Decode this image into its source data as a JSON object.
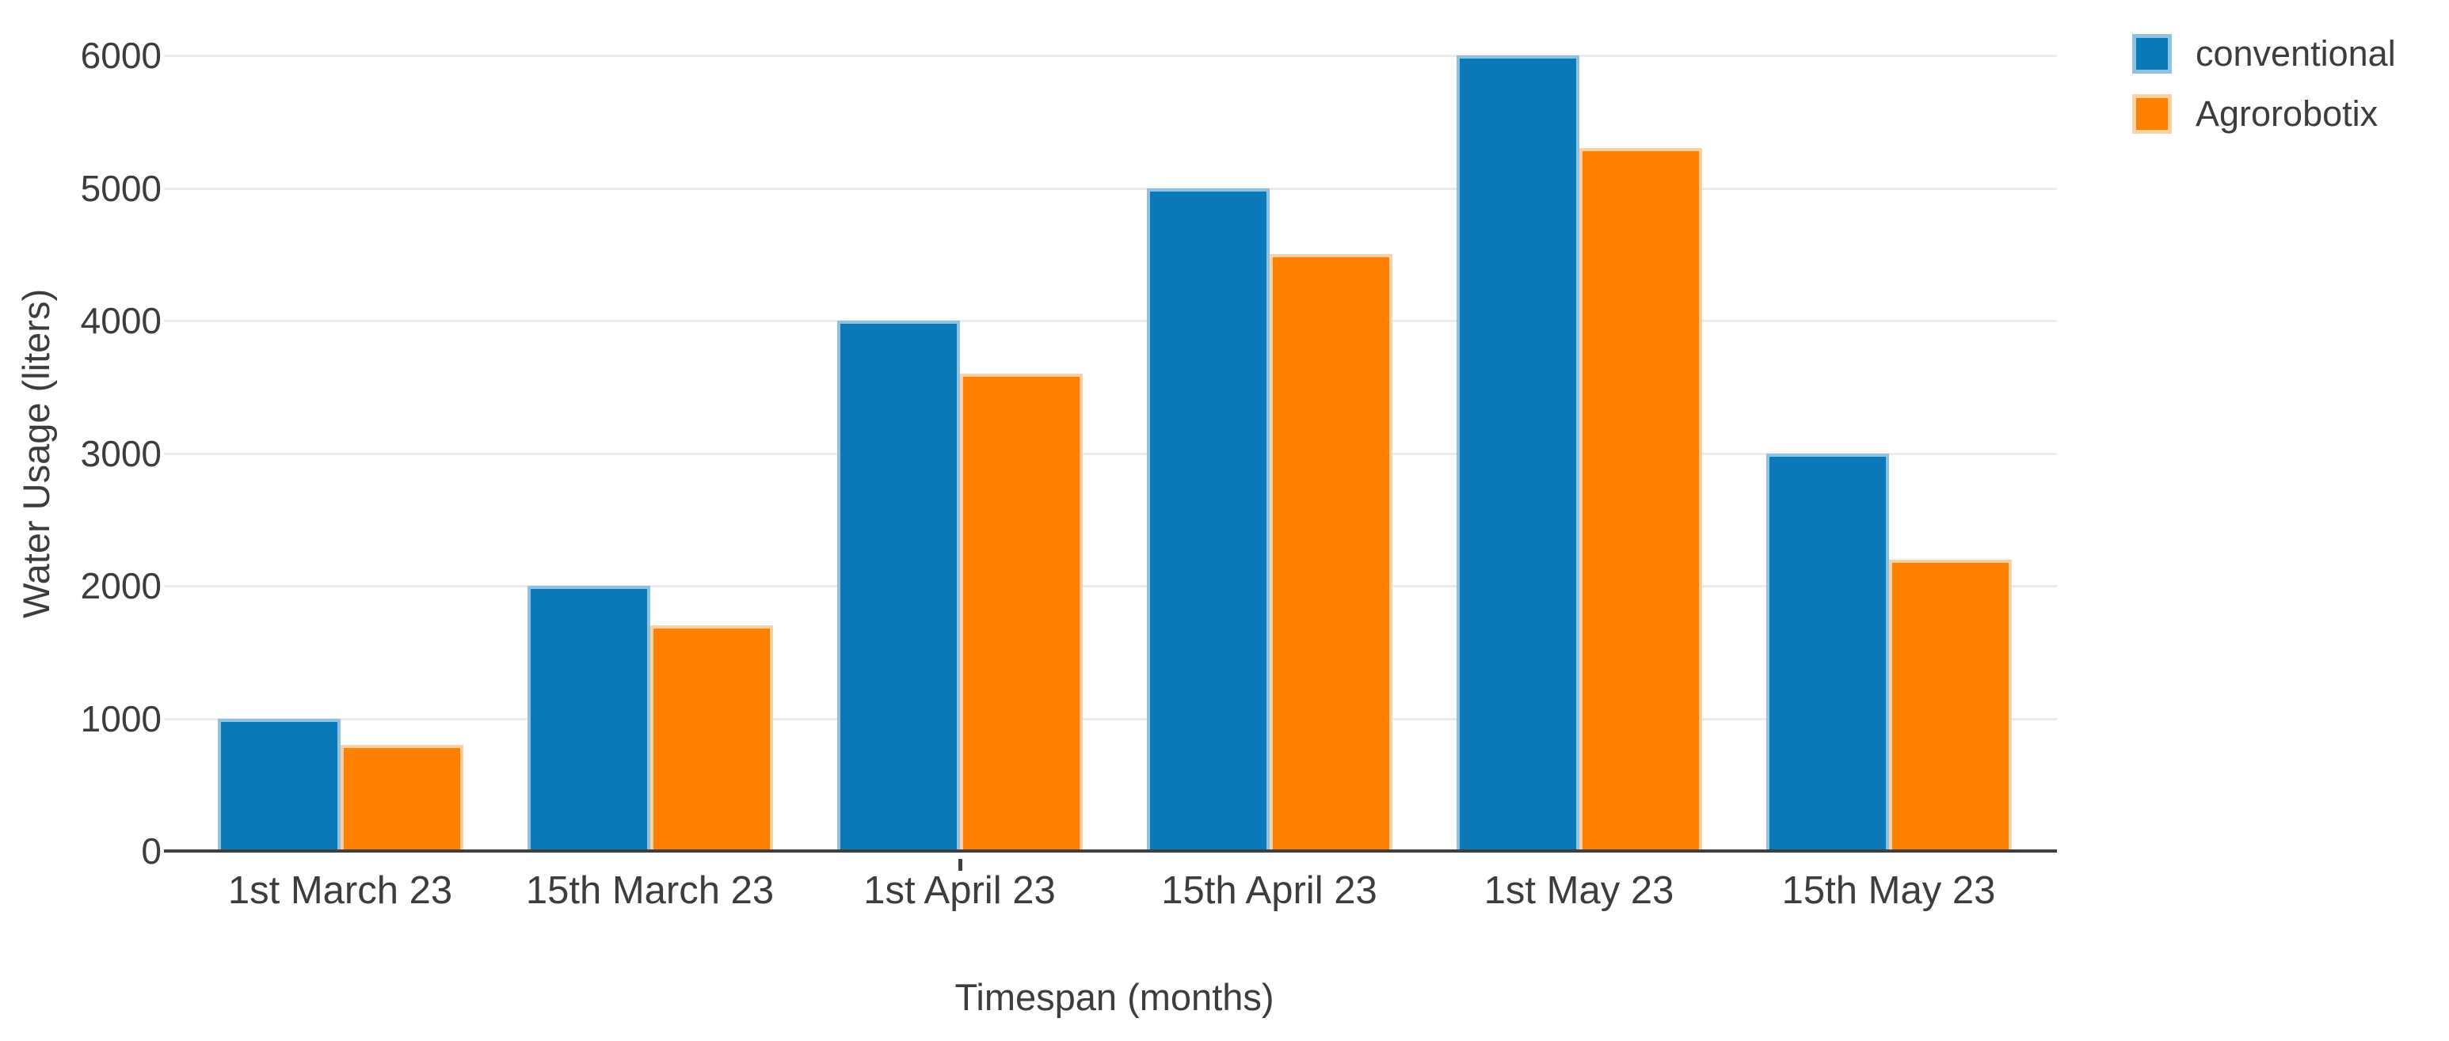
{
  "chart_data": {
    "type": "bar",
    "title": "",
    "categories": [
      "1st March 23",
      "15th March 23",
      "1st April 23",
      "15th April 23",
      "1st May 23",
      "15th May 23"
    ],
    "series": [
      {
        "name": "conventional",
        "color": "#0b79b8",
        "edge_color": "#8fc1e0",
        "values": [
          1000,
          2000,
          4000,
          5000,
          6000,
          3000
        ]
      },
      {
        "name": "Agrorobotix",
        "color": "#ff7f00",
        "edge_color": "#ffd0a3",
        "values": [
          800,
          1700,
          3600,
          4500,
          5300,
          2200
        ]
      }
    ],
    "xlabel": "Timespan (months)",
    "ylabel": "Water Usage (liters)",
    "ylim": [
      0,
      6000
    ],
    "yticks": [
      0,
      1000,
      2000,
      3000,
      4000,
      5000,
      6000
    ],
    "grid": "horizontal gridlines on",
    "legend_position": "top-right",
    "background_color": "#ffffff",
    "gridline_color": "#ebebeb",
    "axis_line_color": "#3f3f3f",
    "text_color": "#3d3d3d"
  }
}
